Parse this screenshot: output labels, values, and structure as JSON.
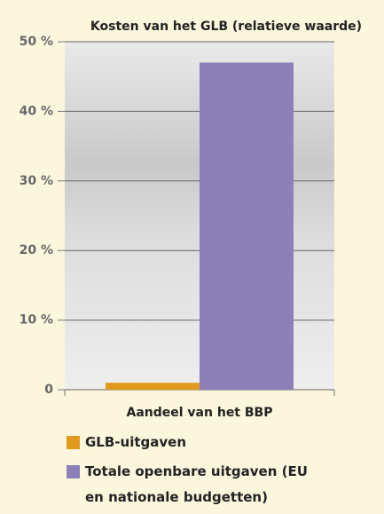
{
  "chart_data": {
    "type": "bar",
    "title": "Kosten van het GLB (relatieve waarde)",
    "categories": [
      "Aandeel van het BBP"
    ],
    "series": [
      {
        "name": "GLB-uitgaven",
        "color": "#e29a1c",
        "values": [
          1
        ]
      },
      {
        "name": "Totale openbare uitgaven (EU en nationale budgetten)",
        "color": "#8d7fb7",
        "values": [
          47
        ]
      }
    ],
    "ylim": [
      0,
      50
    ],
    "yticks": [
      0,
      {
        "value": 10,
        "label": "10 %"
      },
      {
        "value": 20,
        "label": "20 %"
      },
      {
        "value": 30,
        "label": "30 %"
      },
      {
        "value": 40,
        "label": "40 %"
      },
      {
        "value": 50,
        "label": "50 %"
      }
    ],
    "grid": true
  }
}
